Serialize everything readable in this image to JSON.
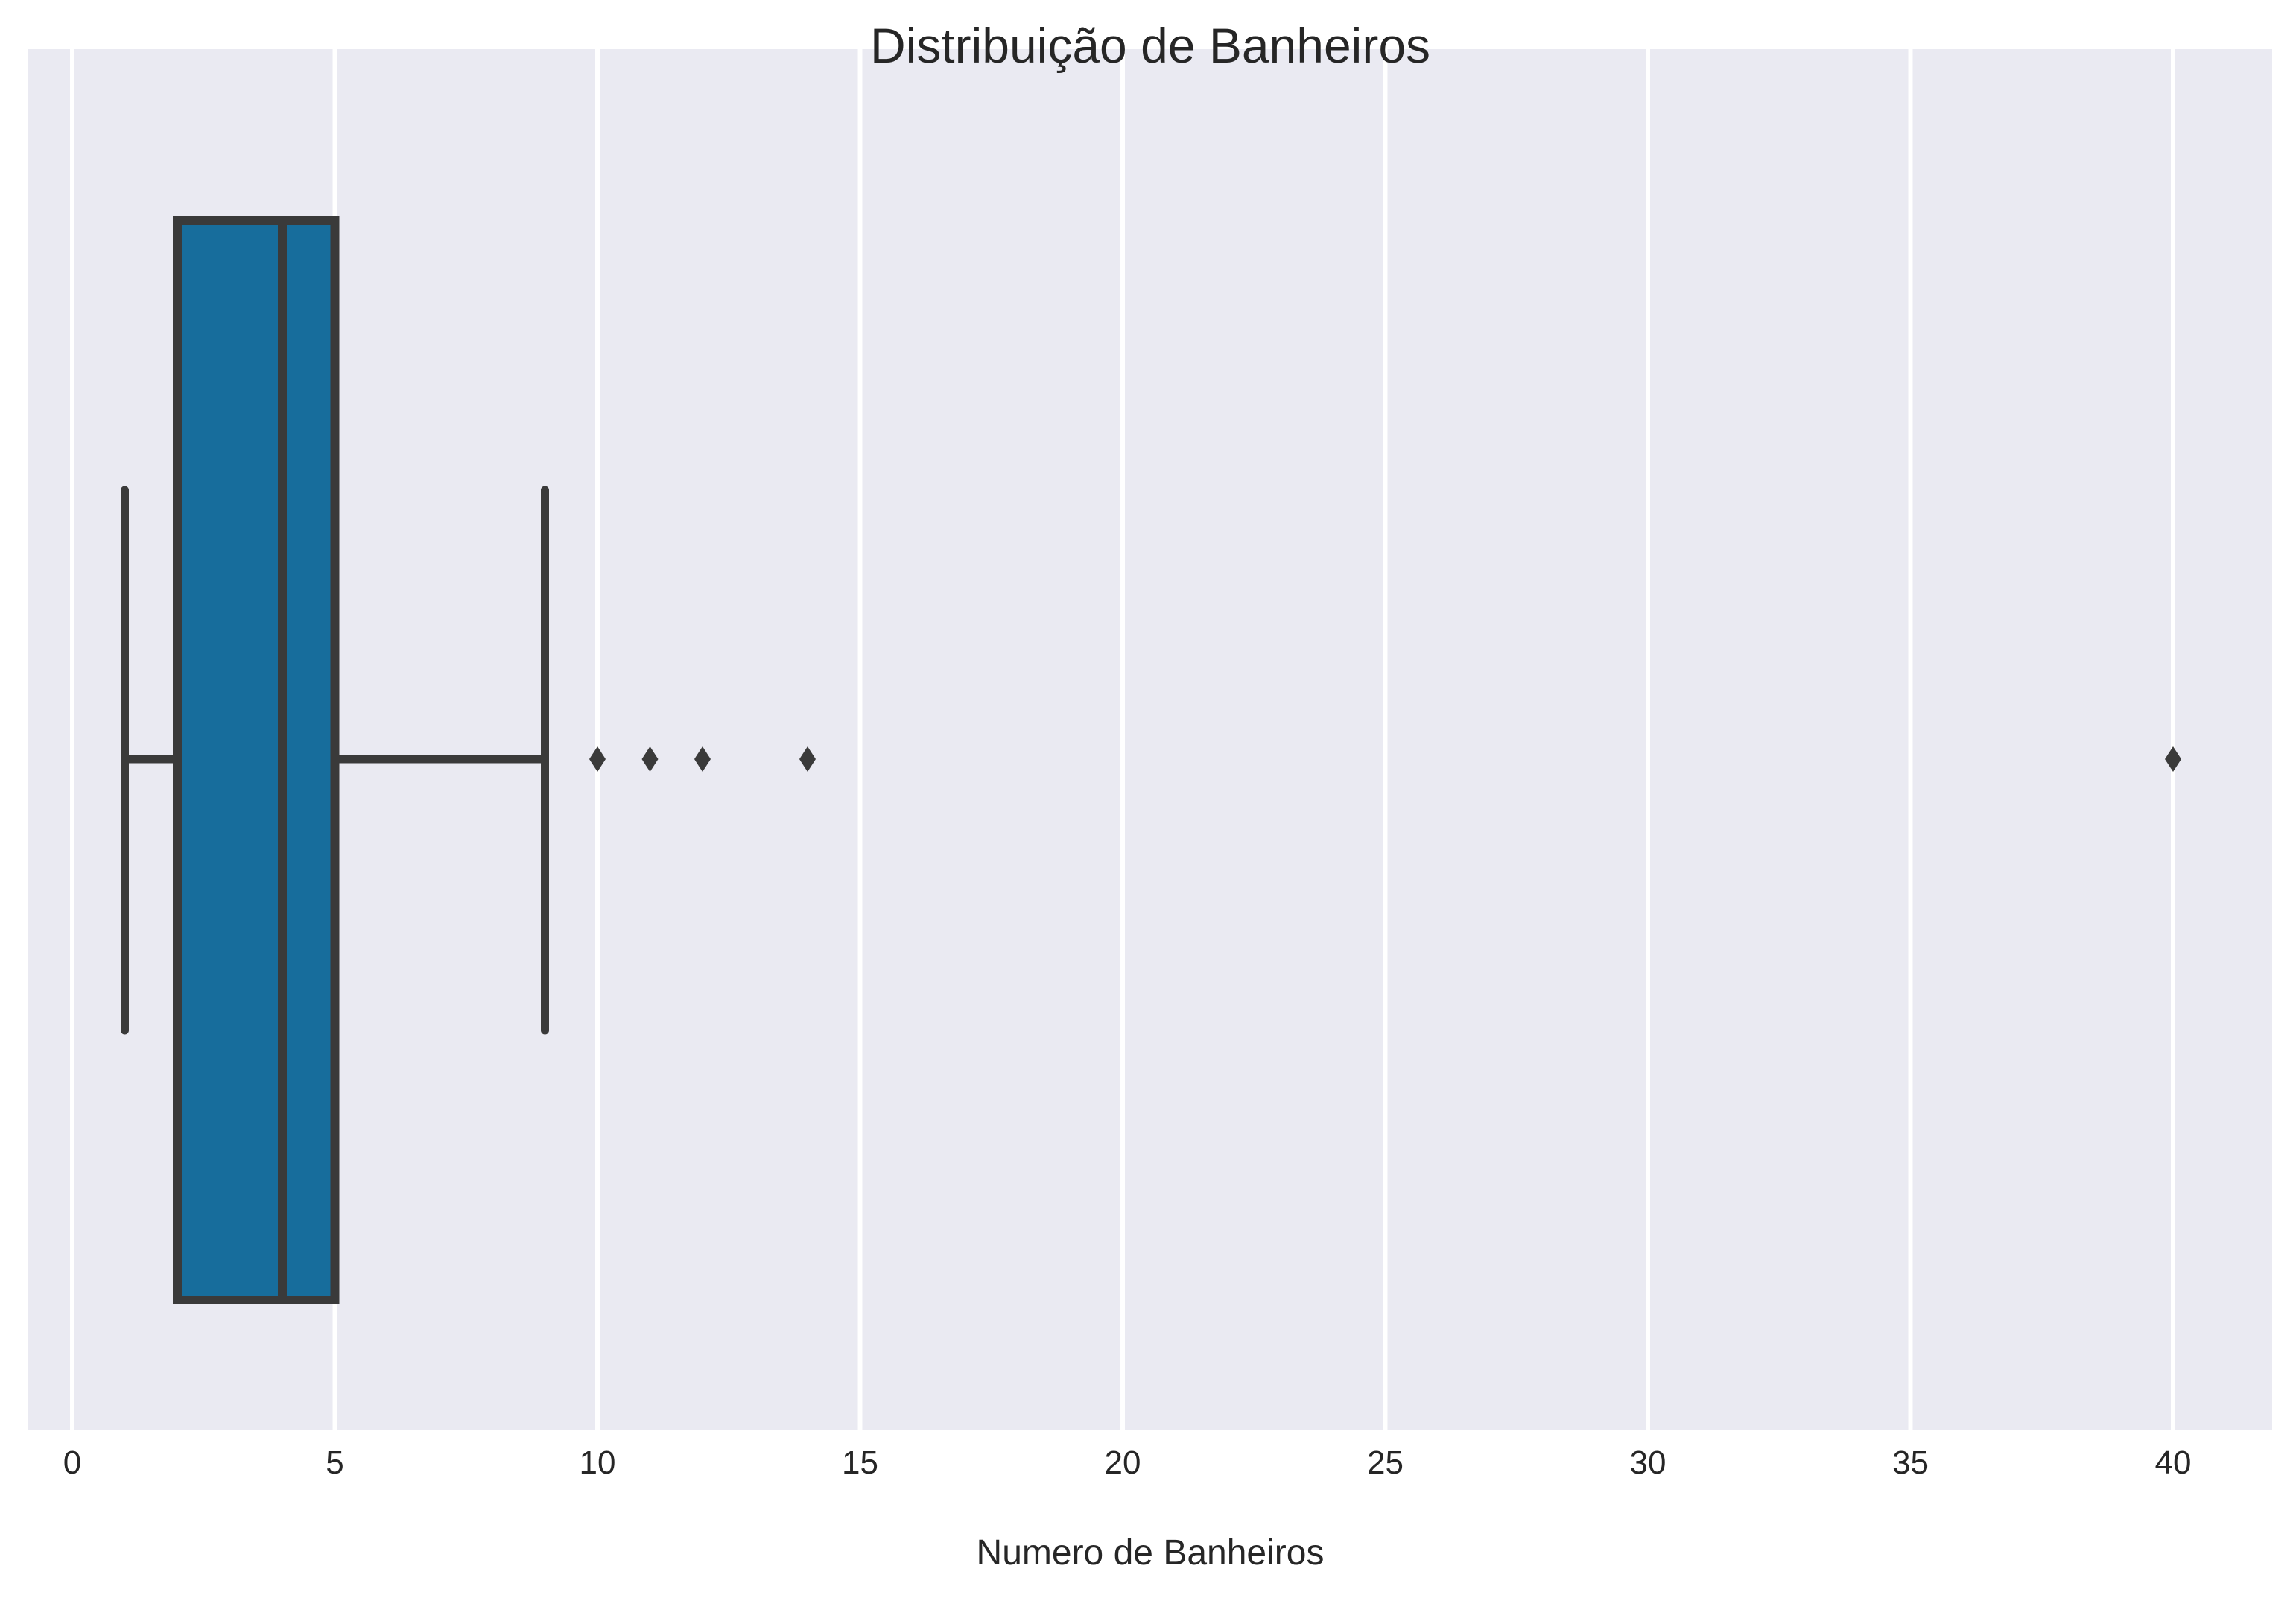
{
  "chart_data": {
    "type": "boxplot",
    "title": "Distribuição de Banheiros",
    "xlabel": "Numero de Banheiros",
    "ylabel": "",
    "orientation": "horizontal",
    "xlim": [
      -0.8,
      42
    ],
    "x_ticks": [
      0,
      5,
      10,
      15,
      20,
      25,
      30,
      35,
      40
    ],
    "grid": true,
    "box": {
      "whisker_low": 1,
      "q1": 2,
      "median": 4,
      "q3": 5,
      "whisker_high": 9
    },
    "outliers": [
      10,
      11,
      12,
      14,
      40
    ],
    "colors": {
      "background": "#EAEAF2",
      "box_fill": "#176D9C",
      "line": "#3A3A3A",
      "grid": "#FFFFFF"
    }
  }
}
